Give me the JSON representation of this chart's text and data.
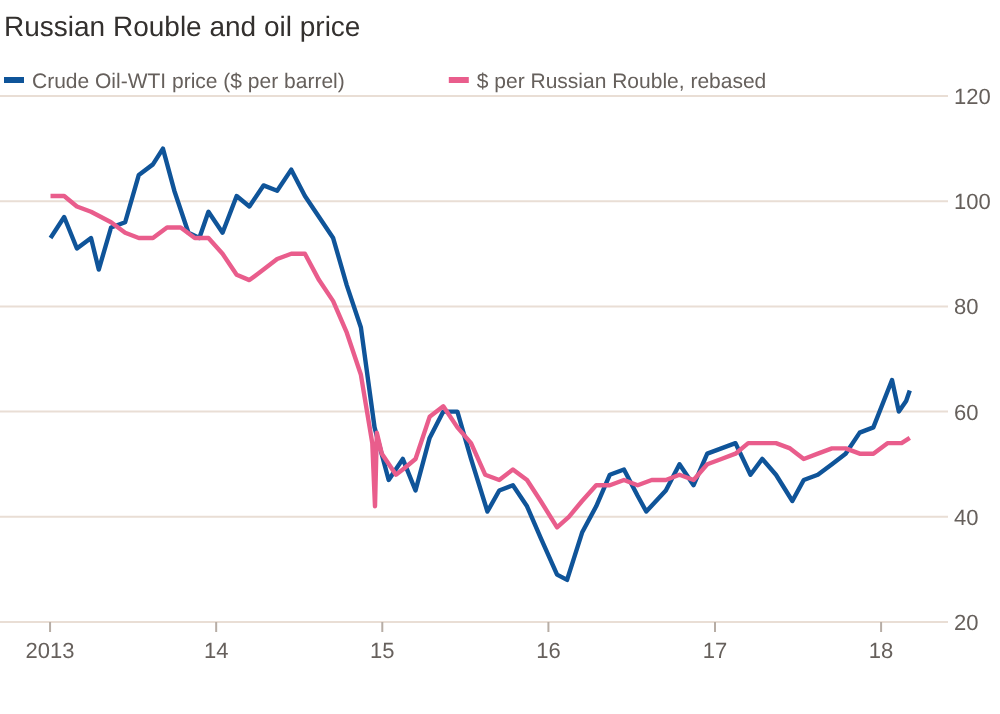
{
  "chart_data": {
    "type": "line",
    "title": "Russian Rouble and oil price",
    "xlim": [
      "2012-09-13",
      "2018-05-28"
    ],
    "xticks": [
      {
        "value": "2013-01-01",
        "label": "2013"
      },
      {
        "value": "2014-01-01",
        "label": "14"
      },
      {
        "value": "2015-01-01",
        "label": "15"
      },
      {
        "value": "2016-01-01",
        "label": "16"
      },
      {
        "value": "2017-01-01",
        "label": "17"
      },
      {
        "value": "2018-01-01",
        "label": "18"
      }
    ],
    "ylim": [
      20,
      120
    ],
    "yticks": [
      20,
      40,
      60,
      80,
      100,
      120
    ],
    "grid": "y",
    "legend": "top left",
    "series": [
      {
        "name": "Crude Oil-WTI price ($ per barrel)",
        "color": "#0f5499",
        "x": [
          "2013-01-02",
          "2013-02-01",
          "2013-03-01",
          "2013-04-01",
          "2013-04-18",
          "2013-05-15",
          "2013-06-15",
          "2013-07-15",
          "2013-08-15",
          "2013-09-06",
          "2013-10-01",
          "2013-11-01",
          "2013-11-25",
          "2013-12-15",
          "2014-01-15",
          "2014-02-15",
          "2014-03-15",
          "2014-04-15",
          "2014-05-15",
          "2014-06-15",
          "2014-07-15",
          "2014-08-15",
          "2014-09-15",
          "2014-10-15",
          "2014-11-15",
          "2014-12-15",
          "2015-01-15",
          "2015-02-15",
          "2015-03-15",
          "2015-04-15",
          "2015-05-15",
          "2015-06-15",
          "2015-07-15",
          "2015-08-20",
          "2015-09-15",
          "2015-10-15",
          "2015-11-15",
          "2015-12-15",
          "2016-01-20",
          "2016-02-11",
          "2016-03-15",
          "2016-04-15",
          "2016-05-15",
          "2016-06-15",
          "2016-07-15",
          "2016-08-03",
          "2016-09-15",
          "2016-10-15",
          "2016-11-15",
          "2016-12-15",
          "2017-01-15",
          "2017-02-15",
          "2017-03-20",
          "2017-04-15",
          "2017-05-15",
          "2017-06-20",
          "2017-07-15",
          "2017-08-15",
          "2017-09-15",
          "2017-10-15",
          "2017-11-15",
          "2017-12-15",
          "2018-01-25",
          "2018-02-09",
          "2018-02-25",
          "2018-03-05"
        ],
        "values": [
          93,
          97,
          91,
          93,
          87,
          95,
          96,
          105,
          107,
          110,
          102,
          94,
          93,
          98,
          94,
          101,
          99,
          103,
          102,
          106,
          101,
          97,
          93,
          84,
          76,
          57,
          47,
          51,
          45,
          55,
          60,
          60,
          51,
          41,
          45,
          46,
          42,
          36,
          29,
          28,
          37,
          42,
          48,
          49,
          44,
          41,
          45,
          50,
          46,
          52,
          53,
          54,
          48,
          51,
          48,
          43,
          47,
          48,
          50,
          52,
          56,
          57,
          66,
          60,
          62,
          64
        ]
      },
      {
        "name": "$ per Russian Rouble, rebased",
        "color": "#e95d8c",
        "x": [
          "2013-01-02",
          "2013-02-01",
          "2013-03-01",
          "2013-04-01",
          "2013-05-15",
          "2013-06-15",
          "2013-07-15",
          "2013-08-15",
          "2013-09-15",
          "2013-10-15",
          "2013-11-15",
          "2013-12-15",
          "2014-01-15",
          "2014-02-15",
          "2014-03-15",
          "2014-04-15",
          "2014-05-15",
          "2014-06-15",
          "2014-07-15",
          "2014-08-15",
          "2014-09-15",
          "2014-10-15",
          "2014-11-15",
          "2014-12-10",
          "2014-12-16",
          "2014-12-20",
          "2014-12-31",
          "2015-01-31",
          "2015-02-15",
          "2015-03-15",
          "2015-04-15",
          "2015-05-15",
          "2015-06-15",
          "2015-07-15",
          "2015-08-15",
          "2015-09-15",
          "2015-10-15",
          "2015-11-15",
          "2015-12-15",
          "2016-01-20",
          "2016-02-15",
          "2016-03-15",
          "2016-04-15",
          "2016-05-15",
          "2016-06-15",
          "2016-07-15",
          "2016-08-15",
          "2016-09-15",
          "2016-10-15",
          "2016-11-15",
          "2016-12-15",
          "2017-01-15",
          "2017-02-15",
          "2017-03-15",
          "2017-04-15",
          "2017-05-15",
          "2017-06-15",
          "2017-07-15",
          "2017-08-15",
          "2017-09-15",
          "2017-10-15",
          "2017-11-15",
          "2017-12-15",
          "2018-01-15",
          "2018-02-15",
          "2018-03-05"
        ],
        "values": [
          101,
          101,
          99,
          98,
          96,
          94,
          93,
          93,
          95,
          95,
          93,
          93,
          90,
          86,
          85,
          87,
          89,
          90,
          90,
          85,
          81,
          75,
          67,
          54,
          42,
          56,
          52,
          48,
          49,
          51,
          59,
          61,
          57,
          54,
          48,
          47,
          49,
          47,
          43,
          38,
          40,
          43,
          46,
          46,
          47,
          46,
          47,
          47,
          48,
          47,
          50,
          51,
          52,
          54,
          54,
          54,
          53,
          51,
          52,
          53,
          53,
          52,
          52,
          54,
          54,
          55
        ]
      }
    ]
  }
}
